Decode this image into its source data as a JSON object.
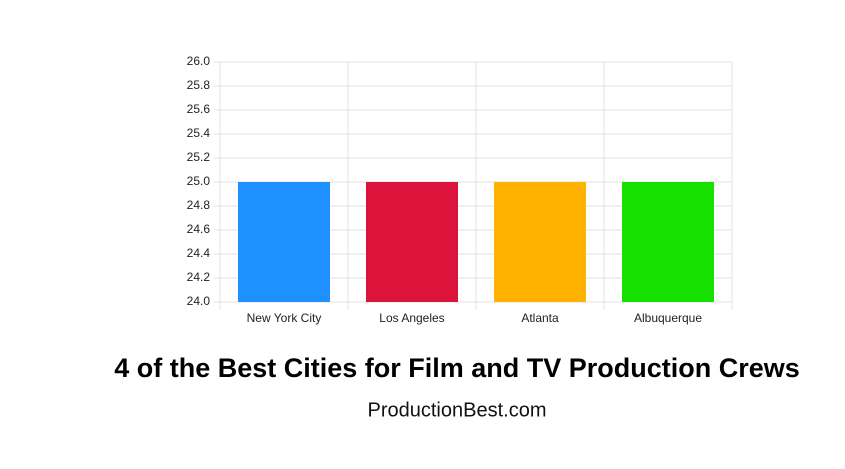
{
  "chart_data": {
    "type": "bar",
    "title": "4 of the Best Cities for Film and TV Production Crews",
    "subtitle": "ProductionBest.com",
    "categories": [
      "New York City",
      "Los Angeles",
      "Atlanta",
      "Albuquerque"
    ],
    "values": [
      25,
      25,
      25,
      25
    ],
    "colors": [
      "#1e90ff",
      "#dc143c",
      "#ffb300",
      "#16e000"
    ],
    "ylim": [
      24,
      26
    ],
    "yticks": [
      {
        "value": 24,
        "label": "24.0"
      },
      24.2,
      24.4,
      24.6,
      24.8,
      {
        "value": 25,
        "label": "25.0"
      },
      25.2,
      25.4,
      25.6,
      25.8,
      {
        "value": 26,
        "label": "26.0"
      }
    ],
    "grid": true
  }
}
